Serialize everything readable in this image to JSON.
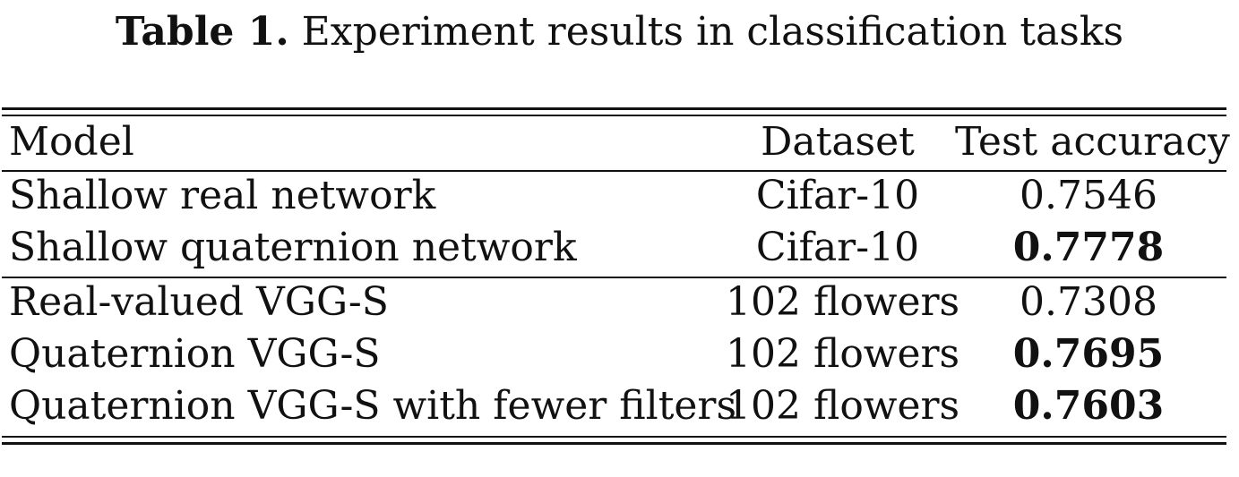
{
  "caption": {
    "label": "Table 1.",
    "text": "Experiment results in classification tasks"
  },
  "table": {
    "headers": [
      "Model",
      "Dataset",
      "Test accuracy"
    ],
    "rows": [
      {
        "model": "Shallow real network",
        "dataset": "Cifar-10",
        "accuracy": "0.7546",
        "bold": false
      },
      {
        "model": "Shallow quaternion network",
        "dataset": "Cifar-10",
        "accuracy": "0.7778",
        "bold": true
      },
      {
        "model": "Real-valued VGG-S",
        "dataset": "102 flowers",
        "accuracy": "0.7308",
        "bold": false
      },
      {
        "model": "Quaternion VGG-S",
        "dataset": "102 flowers",
        "accuracy": "0.7695",
        "bold": true
      },
      {
        "model": "Quaternion VGG-S with fewer filters",
        "dataset": "102 flowers",
        "accuracy": "0.7603",
        "bold": true
      }
    ]
  }
}
